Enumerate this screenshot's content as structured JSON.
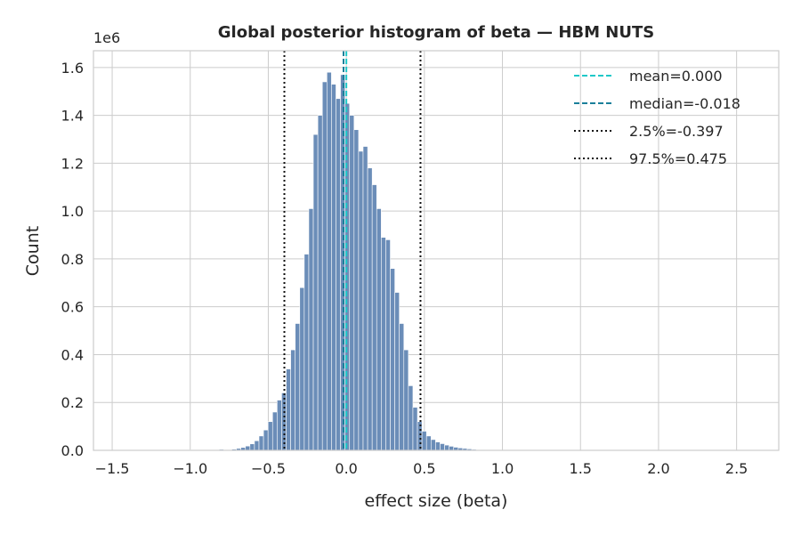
{
  "chart_data": {
    "type": "bar",
    "title": "Global posterior histogram of beta — HBM NUTS",
    "xlabel": "effect size (beta)",
    "ylabel": "Count",
    "y_offset_text": "1e6",
    "xlim": [
      -1.62,
      2.77
    ],
    "ylim": [
      0,
      1.67
    ],
    "x_ticks": [
      -1.5,
      -1.0,
      -0.5,
      0.0,
      0.5,
      1.0,
      1.5,
      2.0,
      2.5
    ],
    "x_tick_labels": [
      "−1.5",
      "−1.0",
      "−0.5",
      "0.0",
      "0.5",
      "1.0",
      "1.5",
      "2.0",
      "2.5"
    ],
    "y_ticks": [
      0.0,
      0.2,
      0.4,
      0.6,
      0.8,
      1.0,
      1.2,
      1.4,
      1.6
    ],
    "y_tick_labels": [
      "0.0",
      "0.2",
      "0.4",
      "0.6",
      "0.8",
      "1.0",
      "1.2",
      "1.4",
      "1.6"
    ],
    "grid": true,
    "legend_position": "top-right",
    "bar_color": "#6b8db8",
    "bin_width": 0.0291,
    "bins": [
      {
        "x": -1.5,
        "y": 0.0
      },
      {
        "x": -1.2,
        "y": 0.001
      },
      {
        "x": -1.0,
        "y": 0.002
      },
      {
        "x": -0.9,
        "y": 0.003
      },
      {
        "x": -0.8,
        "y": 0.004
      },
      {
        "x": -0.719,
        "y": 0.005
      },
      {
        "x": -0.69,
        "y": 0.008
      },
      {
        "x": -0.661,
        "y": 0.012
      },
      {
        "x": -0.632,
        "y": 0.018
      },
      {
        "x": -0.603,
        "y": 0.027
      },
      {
        "x": -0.574,
        "y": 0.04
      },
      {
        "x": -0.545,
        "y": 0.06
      },
      {
        "x": -0.516,
        "y": 0.085
      },
      {
        "x": -0.487,
        "y": 0.12
      },
      {
        "x": -0.458,
        "y": 0.16
      },
      {
        "x": -0.429,
        "y": 0.21
      },
      {
        "x": -0.4,
        "y": 0.24
      },
      {
        "x": -0.371,
        "y": 0.34
      },
      {
        "x": -0.342,
        "y": 0.42
      },
      {
        "x": -0.313,
        "y": 0.53
      },
      {
        "x": -0.284,
        "y": 0.68
      },
      {
        "x": -0.255,
        "y": 0.82
      },
      {
        "x": -0.226,
        "y": 1.01
      },
      {
        "x": -0.197,
        "y": 1.32
      },
      {
        "x": -0.168,
        "y": 1.4
      },
      {
        "x": -0.139,
        "y": 1.54
      },
      {
        "x": -0.11,
        "y": 1.58
      },
      {
        "x": -0.081,
        "y": 1.53
      },
      {
        "x": -0.052,
        "y": 1.47
      },
      {
        "x": -0.023,
        "y": 1.57
      },
      {
        "x": 0.006,
        "y": 1.45
      },
      {
        "x": 0.035,
        "y": 1.4
      },
      {
        "x": 0.064,
        "y": 1.34
      },
      {
        "x": 0.093,
        "y": 1.25
      },
      {
        "x": 0.122,
        "y": 1.27
      },
      {
        "x": 0.151,
        "y": 1.18
      },
      {
        "x": 0.18,
        "y": 1.11
      },
      {
        "x": 0.209,
        "y": 1.01
      },
      {
        "x": 0.238,
        "y": 0.89
      },
      {
        "x": 0.267,
        "y": 0.88
      },
      {
        "x": 0.296,
        "y": 0.76
      },
      {
        "x": 0.325,
        "y": 0.66
      },
      {
        "x": 0.354,
        "y": 0.53
      },
      {
        "x": 0.383,
        "y": 0.42
      },
      {
        "x": 0.412,
        "y": 0.27
      },
      {
        "x": 0.441,
        "y": 0.18
      },
      {
        "x": 0.47,
        "y": 0.12
      },
      {
        "x": 0.499,
        "y": 0.08
      },
      {
        "x": 0.528,
        "y": 0.06
      },
      {
        "x": 0.557,
        "y": 0.045
      },
      {
        "x": 0.586,
        "y": 0.035
      },
      {
        "x": 0.615,
        "y": 0.028
      },
      {
        "x": 0.644,
        "y": 0.022
      },
      {
        "x": 0.673,
        "y": 0.017
      },
      {
        "x": 0.702,
        "y": 0.013
      },
      {
        "x": 0.731,
        "y": 0.01
      },
      {
        "x": 0.76,
        "y": 0.008
      },
      {
        "x": 0.789,
        "y": 0.006
      },
      {
        "x": 0.818,
        "y": 0.004
      },
      {
        "x": 0.847,
        "y": 0.003
      },
      {
        "x": 0.876,
        "y": 0.002
      },
      {
        "x": 0.905,
        "y": 0.0015
      },
      {
        "x": 1.0,
        "y": 0.001
      },
      {
        "x": 1.3,
        "y": 0.0005
      },
      {
        "x": 2.6,
        "y": 0.0
      }
    ],
    "reference_lines": [
      {
        "label": "mean=0.000",
        "x": 0.0,
        "color": "#1ec8c8",
        "style": "dashed"
      },
      {
        "label": "median=-0.018",
        "x": -0.018,
        "color": "#1a7f9a",
        "style": "dashed"
      },
      {
        "label": "2.5%=-0.397",
        "x": -0.397,
        "color": "#111111",
        "style": "dotted"
      },
      {
        "label": "97.5%=0.475",
        "x": 0.475,
        "color": "#111111",
        "style": "dotted"
      }
    ]
  }
}
